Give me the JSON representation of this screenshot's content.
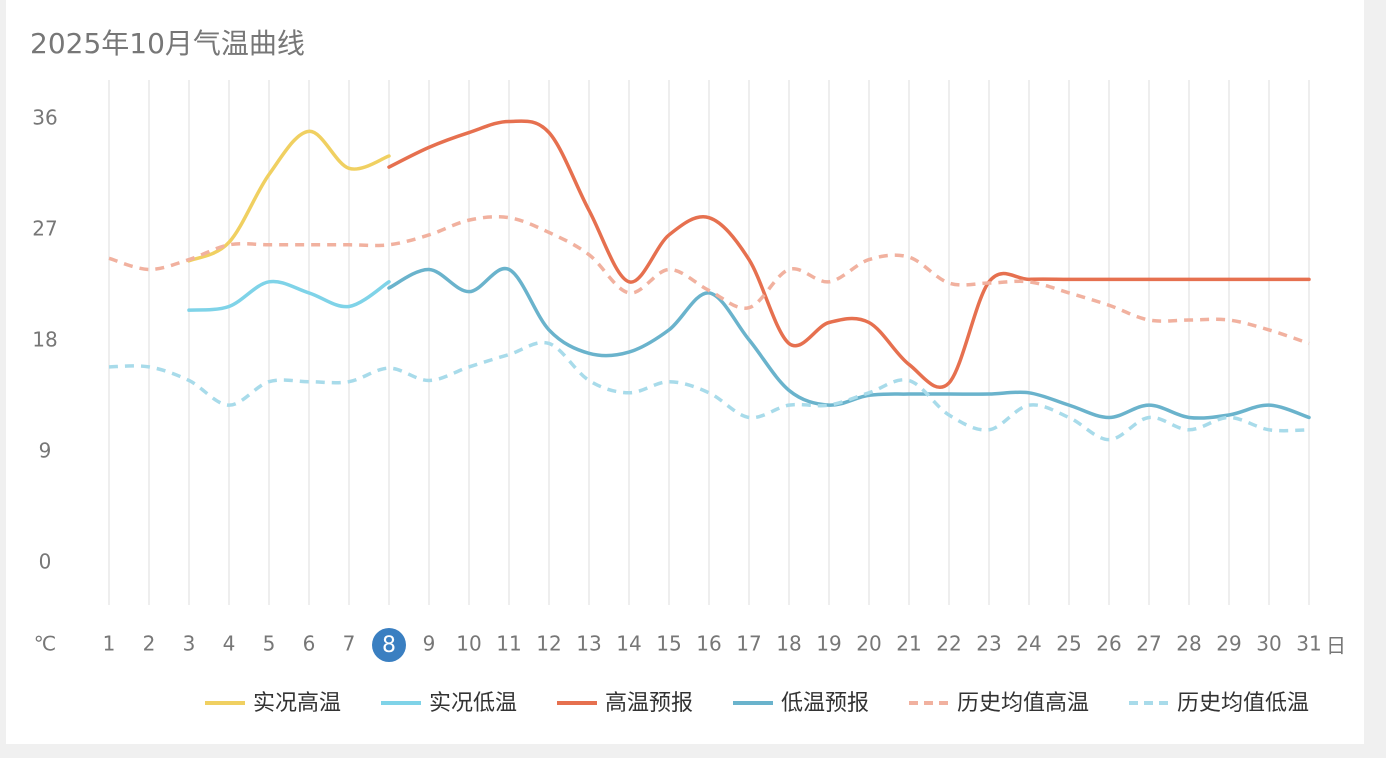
{
  "chart_data": {
    "type": "line",
    "title": "2025年10月气温曲线",
    "y_unit": "℃",
    "x_unit": "日",
    "categories": [
      "1",
      "2",
      "3",
      "4",
      "5",
      "6",
      "7",
      "8",
      "9",
      "10",
      "11",
      "12",
      "13",
      "14",
      "15",
      "16",
      "17",
      "18",
      "19",
      "20",
      "21",
      "22",
      "23",
      "24",
      "25",
      "26",
      "27",
      "28",
      "29",
      "30",
      "31"
    ],
    "highlight_index": 7,
    "highlight_color": "#3a7fc1",
    "ylim": [
      0,
      36
    ],
    "yticks": [
      0,
      9,
      18,
      27,
      36
    ],
    "grid": true,
    "smooth": true,
    "legend": "bottom",
    "series": [
      {
        "name": "实况高温",
        "color": "#f0d061",
        "dashed": false,
        "values": [
          null,
          null,
          24.5,
          26,
          31.5,
          35,
          32,
          33,
          null,
          null,
          null,
          null,
          null,
          null,
          null,
          null,
          null,
          null,
          null,
          null,
          null,
          null,
          null,
          null,
          null,
          null,
          null,
          null,
          null,
          null,
          null
        ]
      },
      {
        "name": "实况低温",
        "color": "#7fd3e8",
        "dashed": false,
        "values": [
          null,
          null,
          20.5,
          20.8,
          22.8,
          21.9,
          20.8,
          22.8,
          null,
          null,
          null,
          null,
          null,
          null,
          null,
          null,
          null,
          null,
          null,
          null,
          null,
          null,
          null,
          null,
          null,
          null,
          null,
          null,
          null,
          null,
          null
        ]
      },
      {
        "name": "高温预报",
        "color": "#e6704f",
        "dashed": false,
        "values": [
          null,
          null,
          null,
          null,
          null,
          null,
          null,
          32.1,
          33.7,
          34.9,
          35.8,
          34.9,
          28.6,
          22.8,
          26.6,
          28,
          24.6,
          17.8,
          19.5,
          19.5,
          16.1,
          14.6,
          22.8,
          23,
          23,
          23,
          23,
          23,
          23,
          23,
          23
        ]
      },
      {
        "name": "低温预报",
        "color": "#6ab3cc",
        "dashed": false,
        "values": [
          null,
          null,
          null,
          null,
          null,
          null,
          null,
          22.3,
          23.8,
          22,
          23.8,
          18.9,
          17,
          17.1,
          18.9,
          21.9,
          18.1,
          14,
          12.8,
          13.6,
          13.7,
          13.7,
          13.7,
          13.8,
          12.8,
          11.8,
          12.8,
          11.8,
          12,
          12.8,
          11.8
        ]
      },
      {
        "name": "历史均值高温",
        "color": "#f1b19f",
        "dashed": true,
        "values": [
          24.7,
          23.8,
          24.6,
          25.8,
          25.8,
          25.8,
          25.8,
          25.8,
          26.6,
          27.8,
          28,
          26.8,
          25,
          21.9,
          23.8,
          22.1,
          20.7,
          23.8,
          22.8,
          24.6,
          24.8,
          22.7,
          22.7,
          22.8,
          21.9,
          20.9,
          19.7,
          19.7,
          19.7,
          18.9,
          17.8
        ]
      },
      {
        "name": "历史均值低温",
        "color": "#a8dbea",
        "dashed": true,
        "values": [
          15.9,
          15.9,
          14.8,
          12.8,
          14.7,
          14.7,
          14.7,
          15.8,
          14.8,
          15.9,
          16.9,
          17.8,
          14.8,
          13.8,
          14.7,
          13.8,
          11.8,
          12.8,
          12.8,
          13.8,
          14.8,
          12,
          10.8,
          12.8,
          11.8,
          10,
          11.8,
          10.8,
          11.8,
          10.8,
          10.8
        ]
      }
    ]
  }
}
